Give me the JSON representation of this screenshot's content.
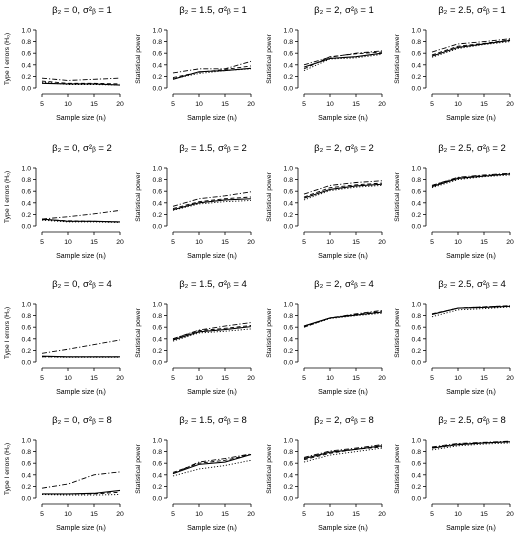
{
  "figure": {
    "x_label": "Sample size (nᵢ)",
    "y_label_type1": "Type I errors (H₀)",
    "y_label_power": "Statistical power"
  },
  "chart_data": [
    {
      "type": "line",
      "title_beta": "β₂ = 0,",
      "title_sigma": "σ²ᵦ = 1",
      "x": [
        5,
        10,
        15,
        20
      ],
      "xticks": [
        "5",
        "10",
        "15",
        "20"
      ],
      "ylim": [
        0,
        1
      ],
      "yticks": [
        "0.0",
        "0.2",
        "0.4",
        "0.6",
        "0.8",
        "1.0"
      ],
      "xlabel": "Sample size (nᵢ)",
      "ylabel": "Type I errors (H₀)",
      "grid": false,
      "series": [
        {
          "style": "solid",
          "values": [
            0.08,
            0.07,
            0.07,
            0.05
          ]
        },
        {
          "style": "dashed",
          "values": [
            0.12,
            0.08,
            0.08,
            0.07
          ]
        },
        {
          "style": "dotted",
          "values": [
            0.1,
            0.06,
            0.06,
            0.05
          ]
        },
        {
          "style": "dashdot",
          "values": [
            0.17,
            0.13,
            0.15,
            0.17
          ]
        }
      ]
    },
    {
      "type": "line",
      "title_beta": "β₂ = 1.5,",
      "title_sigma": "σ²ᵦ = 1",
      "x": [
        5,
        10,
        15,
        20
      ],
      "xticks": [
        "5",
        "10",
        "15",
        "20"
      ],
      "ylim": [
        0,
        1
      ],
      "yticks": [
        "0.0",
        "0.2",
        "0.4",
        "0.6",
        "0.8",
        "1.0"
      ],
      "xlabel": "Sample size (nᵢ)",
      "ylabel": "Statistical power",
      "grid": false,
      "series": [
        {
          "style": "solid",
          "values": [
            0.15,
            0.28,
            0.3,
            0.34
          ]
        },
        {
          "style": "dashed",
          "values": [
            0.18,
            0.27,
            0.32,
            0.38
          ]
        },
        {
          "style": "dotted",
          "values": [
            0.16,
            0.25,
            0.3,
            0.33
          ]
        },
        {
          "style": "dashdot",
          "values": [
            0.26,
            0.33,
            0.33,
            0.46
          ]
        }
      ]
    },
    {
      "type": "line",
      "title_beta": "β₂ = 2,",
      "title_sigma": "σ²ᵦ = 1",
      "x": [
        5,
        10,
        15,
        20
      ],
      "xticks": [
        "5",
        "10",
        "15",
        "20"
      ],
      "ylim": [
        0,
        1
      ],
      "yticks": [
        "0.0",
        "0.2",
        "0.4",
        "0.6",
        "0.8",
        "1.0"
      ],
      "xlabel": "Sample size (nᵢ)",
      "ylabel": "Statistical power",
      "grid": false,
      "series": [
        {
          "style": "solid",
          "values": [
            0.36,
            0.51,
            0.54,
            0.6
          ]
        },
        {
          "style": "dashed",
          "values": [
            0.33,
            0.54,
            0.59,
            0.62
          ]
        },
        {
          "style": "dotted",
          "values": [
            0.3,
            0.5,
            0.52,
            0.58
          ]
        },
        {
          "style": "dashdot",
          "values": [
            0.4,
            0.53,
            0.6,
            0.64
          ]
        }
      ]
    },
    {
      "type": "line",
      "title_beta": "β₂ = 2.5,",
      "title_sigma": "σ²ᵦ = 1",
      "x": [
        5,
        10,
        15,
        20
      ],
      "xticks": [
        "5",
        "10",
        "15",
        "20"
      ],
      "ylim": [
        0,
        1
      ],
      "yticks": [
        "0.0",
        "0.2",
        "0.4",
        "0.6",
        "0.8",
        "1.0"
      ],
      "xlabel": "Sample size (nᵢ)",
      "ylabel": "Statistical power",
      "grid": false,
      "series": [
        {
          "style": "solid",
          "values": [
            0.55,
            0.7,
            0.76,
            0.82
          ]
        },
        {
          "style": "dashed",
          "values": [
            0.57,
            0.72,
            0.77,
            0.83
          ]
        },
        {
          "style": "dotted",
          "values": [
            0.53,
            0.68,
            0.75,
            0.8
          ]
        },
        {
          "style": "dashdot",
          "values": [
            0.62,
            0.76,
            0.8,
            0.85
          ]
        }
      ]
    },
    {
      "type": "line",
      "title_beta": "β₂ = 0,",
      "title_sigma": "σ²ᵦ = 2",
      "x": [
        5,
        10,
        15,
        20
      ],
      "xticks": [
        "5",
        "10",
        "15",
        "20"
      ],
      "ylim": [
        0,
        1
      ],
      "yticks": [
        "0.0",
        "0.2",
        "0.4",
        "0.6",
        "0.8",
        "1.0"
      ],
      "xlabel": "Sample size (nᵢ)",
      "ylabel": "Type I errors (H₀)",
      "grid": false,
      "series": [
        {
          "style": "solid",
          "values": [
            0.12,
            0.08,
            0.08,
            0.07
          ]
        },
        {
          "style": "dashed",
          "values": [
            0.11,
            0.09,
            0.08,
            0.07
          ]
        },
        {
          "style": "dotted",
          "values": [
            0.1,
            0.07,
            0.07,
            0.06
          ]
        },
        {
          "style": "dashdot",
          "values": [
            0.12,
            0.16,
            0.21,
            0.27
          ]
        }
      ]
    },
    {
      "type": "line",
      "title_beta": "β₂ = 1.5,",
      "title_sigma": "σ²ᵦ = 2",
      "x": [
        5,
        10,
        15,
        20
      ],
      "xticks": [
        "5",
        "10",
        "15",
        "20"
      ],
      "ylim": [
        0,
        1
      ],
      "yticks": [
        "0.0",
        "0.2",
        "0.4",
        "0.6",
        "0.8",
        "1.0"
      ],
      "xlabel": "Sample size (nᵢ)",
      "ylabel": "Statistical power",
      "grid": false,
      "series": [
        {
          "style": "solid",
          "values": [
            0.28,
            0.4,
            0.45,
            0.47
          ]
        },
        {
          "style": "dashed",
          "values": [
            0.3,
            0.42,
            0.47,
            0.5
          ]
        },
        {
          "style": "dotted",
          "values": [
            0.27,
            0.38,
            0.42,
            0.44
          ]
        },
        {
          "style": "dashdot",
          "values": [
            0.34,
            0.47,
            0.52,
            0.59
          ]
        }
      ]
    },
    {
      "type": "line",
      "title_beta": "β₂ = 2,",
      "title_sigma": "σ²ᵦ = 2",
      "x": [
        5,
        10,
        15,
        20
      ],
      "xticks": [
        "5",
        "10",
        "15",
        "20"
      ],
      "ylim": [
        0,
        1
      ],
      "yticks": [
        "0.0",
        "0.2",
        "0.4",
        "0.6",
        "0.8",
        "1.0"
      ],
      "xlabel": "Sample size (nᵢ)",
      "ylabel": "Statistical power",
      "grid": false,
      "series": [
        {
          "style": "solid",
          "values": [
            0.48,
            0.63,
            0.69,
            0.72
          ]
        },
        {
          "style": "dashed",
          "values": [
            0.5,
            0.66,
            0.71,
            0.74
          ]
        },
        {
          "style": "dotted",
          "values": [
            0.45,
            0.61,
            0.67,
            0.7
          ]
        },
        {
          "style": "dashdot",
          "values": [
            0.55,
            0.7,
            0.75,
            0.78
          ]
        }
      ]
    },
    {
      "type": "line",
      "title_beta": "β₂ = 2.5,",
      "title_sigma": "σ²ᵦ = 2",
      "x": [
        5,
        10,
        15,
        20
      ],
      "xticks": [
        "5",
        "10",
        "15",
        "20"
      ],
      "ylim": [
        0,
        1
      ],
      "yticks": [
        "0.0",
        "0.2",
        "0.4",
        "0.6",
        "0.8",
        "1.0"
      ],
      "xlabel": "Sample size (nᵢ)",
      "ylabel": "Statistical power",
      "grid": false,
      "series": [
        {
          "style": "solid",
          "values": [
            0.68,
            0.82,
            0.86,
            0.9
          ]
        },
        {
          "style": "dashed",
          "values": [
            0.7,
            0.83,
            0.87,
            0.9
          ]
        },
        {
          "style": "dotted",
          "values": [
            0.66,
            0.8,
            0.85,
            0.88
          ]
        },
        {
          "style": "dashdot",
          "values": [
            0.7,
            0.84,
            0.88,
            0.91
          ]
        }
      ]
    },
    {
      "type": "line",
      "title_beta": "β₂ = 0,",
      "title_sigma": "σ²ᵦ = 4",
      "x": [
        5,
        10,
        15,
        20
      ],
      "xticks": [
        "5",
        "10",
        "15",
        "20"
      ],
      "ylim": [
        0,
        1
      ],
      "yticks": [
        "0.0",
        "0.2",
        "0.4",
        "0.6",
        "0.8",
        "1.0"
      ],
      "xlabel": "Sample size (nᵢ)",
      "ylabel": "Type I errors (H₀)",
      "grid": false,
      "series": [
        {
          "style": "solid",
          "values": [
            0.1,
            0.09,
            0.09,
            0.09
          ]
        },
        {
          "style": "dashed",
          "values": [
            0.09,
            0.09,
            0.09,
            0.09
          ]
        },
        {
          "style": "dotted",
          "values": [
            0.09,
            0.08,
            0.08,
            0.08
          ]
        },
        {
          "style": "dashdot",
          "values": [
            0.15,
            0.22,
            0.3,
            0.38
          ]
        }
      ]
    },
    {
      "type": "line",
      "title_beta": "β₂ = 1.5,",
      "title_sigma": "σ²ᵦ = 4",
      "x": [
        5,
        10,
        15,
        20
      ],
      "xticks": [
        "5",
        "10",
        "15",
        "20"
      ],
      "ylim": [
        0,
        1
      ],
      "yticks": [
        "0.0",
        "0.2",
        "0.4",
        "0.6",
        "0.8",
        "1.0"
      ],
      "xlabel": "Sample size (nᵢ)",
      "ylabel": "Statistical power",
      "grid": false,
      "series": [
        {
          "style": "solid",
          "values": [
            0.38,
            0.52,
            0.56,
            0.61
          ]
        },
        {
          "style": "dashed",
          "values": [
            0.4,
            0.54,
            0.58,
            0.63
          ]
        },
        {
          "style": "dotted",
          "values": [
            0.36,
            0.5,
            0.53,
            0.57
          ]
        },
        {
          "style": "dashdot",
          "values": [
            0.4,
            0.55,
            0.62,
            0.68
          ]
        }
      ]
    },
    {
      "type": "line",
      "title_beta": "β₂ = 2,",
      "title_sigma": "σ²ᵦ = 4",
      "x": [
        5,
        10,
        15,
        20
      ],
      "xticks": [
        "5",
        "10",
        "15",
        "20"
      ],
      "ylim": [
        0,
        1
      ],
      "yticks": [
        "0.0",
        "0.2",
        "0.4",
        "0.6",
        "0.8",
        "1.0"
      ],
      "xlabel": "Sample size (nᵢ)",
      "ylabel": "Statistical power",
      "grid": false,
      "series": [
        {
          "style": "solid",
          "values": [
            0.62,
            0.76,
            0.81,
            0.86
          ]
        },
        {
          "style": "dashed",
          "values": [
            0.6,
            0.76,
            0.82,
            0.87
          ]
        },
        {
          "style": "dotted",
          "values": [
            0.6,
            0.75,
            0.8,
            0.84
          ]
        },
        {
          "style": "dashdot",
          "values": [
            0.62,
            0.76,
            0.83,
            0.89
          ]
        }
      ]
    },
    {
      "type": "line",
      "title_beta": "β₂ = 2.5,",
      "title_sigma": "σ²ᵦ = 4",
      "x": [
        5,
        10,
        15,
        20
      ],
      "xticks": [
        "5",
        "10",
        "15",
        "20"
      ],
      "ylim": [
        0,
        1
      ],
      "yticks": [
        "0.0",
        "0.2",
        "0.4",
        "0.6",
        "0.8",
        "1.0"
      ],
      "xlabel": "Sample size (nᵢ)",
      "ylabel": "Statistical power",
      "grid": false,
      "series": [
        {
          "style": "solid",
          "values": [
            0.82,
            0.93,
            0.94,
            0.96
          ]
        },
        {
          "style": "dashed",
          "values": [
            0.83,
            0.93,
            0.95,
            0.97
          ]
        },
        {
          "style": "dotted",
          "values": [
            0.78,
            0.9,
            0.92,
            0.95
          ]
        },
        {
          "style": "dashdot",
          "values": [
            0.82,
            0.93,
            0.95,
            0.97
          ]
        }
      ]
    },
    {
      "type": "line",
      "title_beta": "β₂ = 0,",
      "title_sigma": "σ²ᵦ = 8",
      "x": [
        5,
        10,
        15,
        20
      ],
      "xticks": [
        "5",
        "10",
        "15",
        "20"
      ],
      "ylim": [
        0,
        1
      ],
      "yticks": [
        "0.0",
        "0.2",
        "0.4",
        "0.6",
        "0.8",
        "1.0"
      ],
      "xlabel": "Sample size (nᵢ)",
      "ylabel": "Type I errors (H₀)",
      "grid": false,
      "series": [
        {
          "style": "solid",
          "values": [
            0.07,
            0.07,
            0.08,
            0.13
          ]
        },
        {
          "style": "dashed",
          "values": [
            0.07,
            0.07,
            0.07,
            0.1
          ]
        },
        {
          "style": "dotted",
          "values": [
            0.06,
            0.05,
            0.05,
            0.06
          ]
        },
        {
          "style": "dashdot",
          "values": [
            0.17,
            0.24,
            0.4,
            0.45
          ]
        }
      ]
    },
    {
      "type": "line",
      "title_beta": "β₂ = 1.5,",
      "title_sigma": "σ²ᵦ = 8",
      "x": [
        5,
        10,
        15,
        20
      ],
      "xticks": [
        "5",
        "10",
        "15",
        "20"
      ],
      "ylim": [
        0,
        1
      ],
      "yticks": [
        "0.0",
        "0.2",
        "0.4",
        "0.6",
        "0.8",
        "1.0"
      ],
      "xlabel": "Sample size (nᵢ)",
      "ylabel": "Statistical power",
      "grid": false,
      "series": [
        {
          "style": "solid",
          "values": [
            0.42,
            0.58,
            0.62,
            0.75
          ]
        },
        {
          "style": "dashed",
          "values": [
            0.44,
            0.6,
            0.65,
            0.75
          ]
        },
        {
          "style": "dotted",
          "values": [
            0.38,
            0.5,
            0.56,
            0.65
          ]
        },
        {
          "style": "dashdot",
          "values": [
            0.42,
            0.62,
            0.68,
            0.76
          ]
        }
      ]
    },
    {
      "type": "line",
      "title_beta": "β₂ = 2,",
      "title_sigma": "σ²ᵦ = 8",
      "x": [
        5,
        10,
        15,
        20
      ],
      "xticks": [
        "5",
        "10",
        "15",
        "20"
      ],
      "ylim": [
        0,
        1
      ],
      "yticks": [
        "0.0",
        "0.2",
        "0.4",
        "0.6",
        "0.8",
        "1.0"
      ],
      "xlabel": "Sample size (nᵢ)",
      "ylabel": "Statistical power",
      "grid": false,
      "series": [
        {
          "style": "solid",
          "values": [
            0.68,
            0.79,
            0.84,
            0.9
          ]
        },
        {
          "style": "dashed",
          "values": [
            0.66,
            0.77,
            0.84,
            0.88
          ]
        },
        {
          "style": "dotted",
          "values": [
            0.62,
            0.74,
            0.8,
            0.86
          ]
        },
        {
          "style": "dashdot",
          "values": [
            0.7,
            0.81,
            0.86,
            0.92
          ]
        }
      ]
    },
    {
      "type": "line",
      "title_beta": "β₂ = 2.5,",
      "title_sigma": "σ²ᵦ = 8",
      "x": [
        5,
        10,
        15,
        20
      ],
      "xticks": [
        "5",
        "10",
        "15",
        "20"
      ],
      "ylim": [
        0,
        1
      ],
      "yticks": [
        "0.0",
        "0.2",
        "0.4",
        "0.6",
        "0.8",
        "1.0"
      ],
      "xlabel": "Sample size (nᵢ)",
      "ylabel": "Statistical power",
      "grid": false,
      "series": [
        {
          "style": "solid",
          "values": [
            0.86,
            0.92,
            0.95,
            0.97
          ]
        },
        {
          "style": "dashed",
          "values": [
            0.87,
            0.93,
            0.95,
            0.97
          ]
        },
        {
          "style": "dotted",
          "values": [
            0.83,
            0.9,
            0.93,
            0.95
          ]
        },
        {
          "style": "dashdot",
          "values": [
            0.88,
            0.94,
            0.96,
            0.98
          ]
        }
      ]
    }
  ]
}
